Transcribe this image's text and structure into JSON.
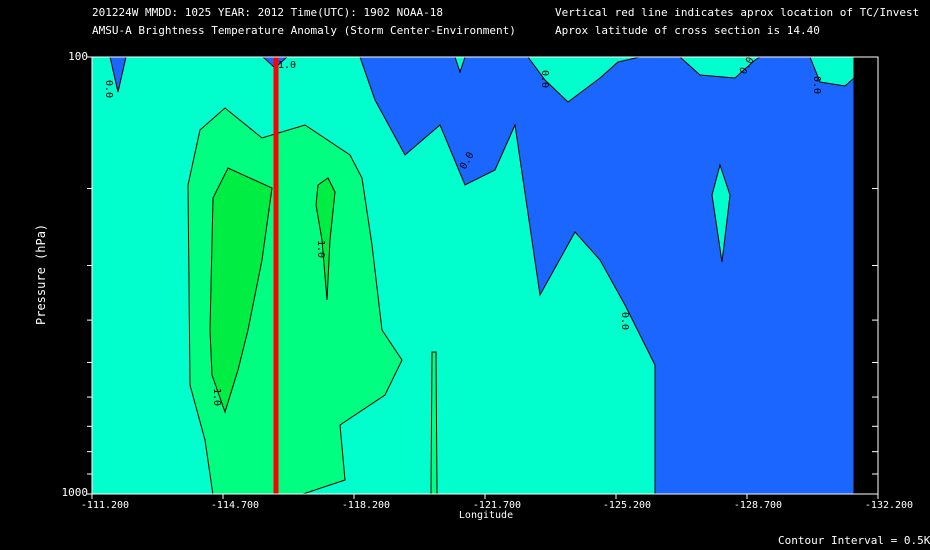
{
  "header": {
    "line1_left": "201224W  MMDD: 1025 YEAR: 2012 Time(UTC): 1902 NOAA-18",
    "line2_left": "AMSU-A Brightness Temperature Anomaly (Storm Center-Environment)",
    "line1_right": "Vertical red line indicates aprox location of TC/Invest",
    "line2_right": "Aprox latitude of cross section is 14.40"
  },
  "footer": {
    "contour_interval": "Contour Interval = 0.5K"
  },
  "chart_data": {
    "type": "contour",
    "title": "AMSU-A Brightness Temperature Anomaly (Storm Center-Environment)",
    "xlabel": "Longitude",
    "ylabel": "Pressure (hPa)",
    "x_tick_labels": [
      "-111.200",
      "-114.700",
      "-118.200",
      "-121.700",
      "-125.200",
      "-128.700",
      "-132.200"
    ],
    "xlim": [
      -111.2,
      -132.2
    ],
    "y_tick_labels": [
      "100",
      "1000"
    ],
    "ylim": [
      1000,
      100
    ],
    "y_scale": "log",
    "storm_longitude": -116.0,
    "contour_interval_K": 0.5,
    "contour_labels": [
      "0.0",
      "1.0"
    ],
    "levels": [
      {
        "range": "< 0.0 K",
        "color": "#1a66ff"
      },
      {
        "range": "0.0 to 0.5 K",
        "color": "#00ffcc"
      },
      {
        "range": "0.5 to 1.0 K",
        "color": "#00ff80"
      },
      {
        "range": "1.0 to 1.5 K",
        "color": "#00ee44"
      }
    ],
    "marker_color": "#ff0000"
  }
}
